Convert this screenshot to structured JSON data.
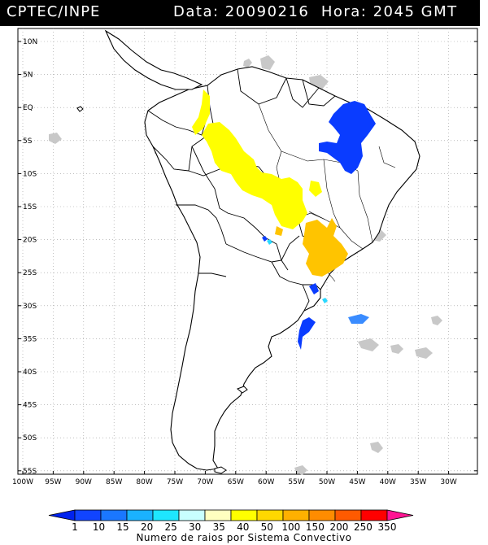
{
  "header": {
    "source": "CPTEC/INPE",
    "datetime": "Data: 20090216  Hora: 2045 GMT"
  },
  "map": {
    "lat_labels": [
      "10N",
      "5N",
      "EQ",
      "5S",
      "10S",
      "15S",
      "20S",
      "25S",
      "30S",
      "35S",
      "40S",
      "45S",
      "50S",
      "55S"
    ],
    "lon_labels": [
      "100W",
      "95W",
      "90W",
      "85W",
      "80W",
      "75W",
      "70W",
      "65W",
      "60W",
      "55W",
      "50W",
      "45W",
      "40W",
      "35W",
      "30W"
    ],
    "gridlines": true,
    "land_color": "#ffffff",
    "cloud_color": "#c8c8c8"
  },
  "legend": {
    "ticks": [
      "1",
      "10",
      "15",
      "20",
      "25",
      "30",
      "35",
      "40",
      "50",
      "100",
      "150",
      "200",
      "250",
      "350"
    ],
    "colors": [
      "#0022ee",
      "#1144ff",
      "#1a77ff",
      "#1ab2ff",
      "#1ee6ff",
      "#c8ffff",
      "#ffffc0",
      "#ffff00",
      "#ffd800",
      "#ffb000",
      "#ff8c00",
      "#ff5a00",
      "#ff0000",
      "#ff1493"
    ],
    "title": "Numero de raios por Sistema Convectivo"
  }
}
